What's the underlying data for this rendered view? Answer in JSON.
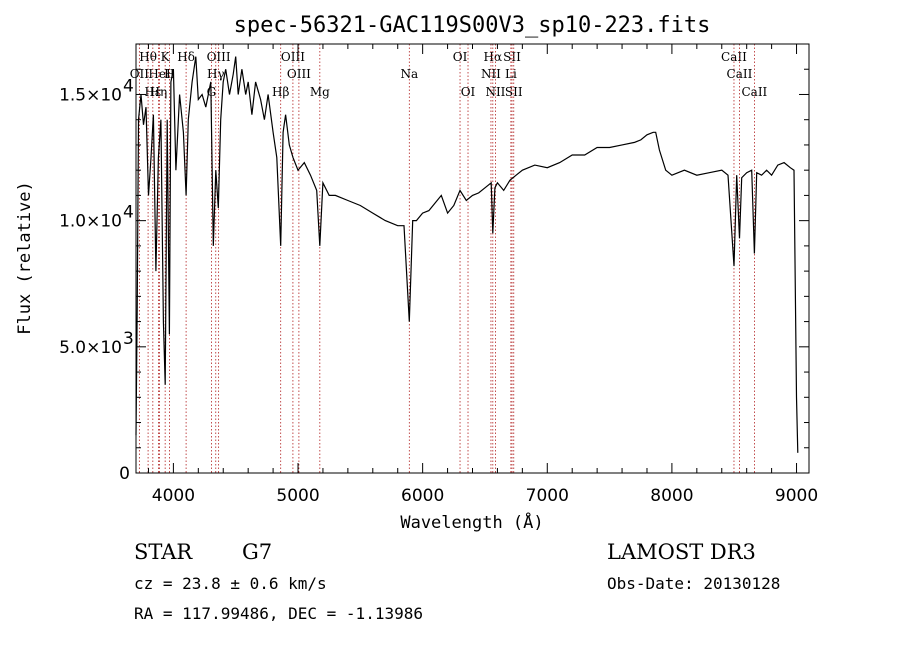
{
  "chart_data": {
    "type": "line",
    "title": "spec-56321-GAC119S00V3_sp10-223.fits",
    "xlabel": "Wavelength (Å)",
    "ylabel": "Flux (relative)",
    "xlim": [
      3700,
      9100
    ],
    "ylim": [
      0,
      17000
    ],
    "x_ticks": [
      {
        "value": 4000,
        "label": "4000"
      },
      {
        "value": 5000,
        "label": "5000"
      },
      {
        "value": 6000,
        "label": "6000"
      },
      {
        "value": 7000,
        "label": "7000"
      },
      {
        "value": 8000,
        "label": "8000"
      },
      {
        "value": 9000,
        "label": "9000"
      }
    ],
    "y_ticks": [
      {
        "value": 0,
        "mantissa": "0",
        "exp": ""
      },
      {
        "value": 5000,
        "mantissa": "5.0×10",
        "exp": "3"
      },
      {
        "value": 10000,
        "mantissa": "1.0×10",
        "exp": "4"
      },
      {
        "value": 15000,
        "mantissa": "1.5×10",
        "exp": "4"
      }
    ],
    "series": [
      {
        "name": "flux",
        "x": [
          3700,
          3710,
          3720,
          3740,
          3760,
          3780,
          3800,
          3820,
          3840,
          3860,
          3880,
          3900,
          3920,
          3934,
          3950,
          3968,
          3980,
          4000,
          4020,
          4050,
          4080,
          4102,
          4120,
          4150,
          4180,
          4200,
          4230,
          4260,
          4300,
          4320,
          4340,
          4360,
          4380,
          4400,
          4420,
          4450,
          4480,
          4500,
          4520,
          4550,
          4580,
          4600,
          4630,
          4660,
          4700,
          4730,
          4760,
          4800,
          4830,
          4861,
          4880,
          4900,
          4930,
          4960,
          5000,
          5050,
          5100,
          5150,
          5175,
          5200,
          5250,
          5300,
          5400,
          5500,
          5600,
          5700,
          5800,
          5850,
          5893,
          5920,
          5950,
          6000,
          6050,
          6100,
          6150,
          6200,
          6250,
          6300,
          6350,
          6400,
          6450,
          6500,
          6550,
          6563,
          6580,
          6600,
          6650,
          6700,
          6750,
          6800,
          6900,
          7000,
          7100,
          7200,
          7300,
          7400,
          7500,
          7600,
          7700,
          7750,
          7800,
          7850,
          7870,
          7900,
          7950,
          8000,
          8050,
          8100,
          8200,
          8300,
          8400,
          8450,
          8498,
          8520,
          8542,
          8560,
          8600,
          8640,
          8662,
          8680,
          8720,
          8760,
          8800,
          8850,
          8900,
          8950,
          8980,
          9000,
          9010
        ],
        "values": [
          1500,
          6500,
          14000,
          15000,
          13800,
          14500,
          11000,
          12500,
          14200,
          8000,
          12500,
          14000,
          6000,
          3500,
          14000,
          5500,
          15500,
          16000,
          12000,
          15000,
          13500,
          11000,
          14000,
          15500,
          16500,
          14800,
          15000,
          14500,
          15500,
          9000,
          12000,
          10500,
          14000,
          15500,
          16000,
          15000,
          15800,
          16500,
          15000,
          16000,
          15000,
          15500,
          14200,
          15500,
          14800,
          14000,
          15000,
          13500,
          12500,
          9000,
          13500,
          14200,
          13000,
          12500,
          12000,
          12300,
          11800,
          11200,
          9000,
          11500,
          11000,
          11000,
          10800,
          10600,
          10300,
          10000,
          9800,
          9800,
          6000,
          10000,
          10000,
          10300,
          10400,
          10700,
          11000,
          10300,
          10600,
          11200,
          10800,
          11000,
          11100,
          11300,
          11500,
          9500,
          11300,
          11500,
          11200,
          11600,
          11800,
          12000,
          12200,
          12100,
          12300,
          12600,
          12600,
          12900,
          12900,
          13000,
          13100,
          13200,
          13400,
          13500,
          13500,
          12800,
          12000,
          11800,
          11900,
          12000,
          11800,
          11900,
          12000,
          11800,
          8200,
          11800,
          9300,
          11700,
          11900,
          12000,
          8700,
          11900,
          11800,
          12000,
          11800,
          12200,
          12300,
          12100,
          12000,
          3000,
          800
        ]
      }
    ],
    "emission_lines": [
      {
        "label": "Hθ",
        "wavelength": 3797,
        "row": 0
      },
      {
        "label": "K",
        "wavelength": 3934,
        "row": 0
      },
      {
        "label": "Hδ",
        "wavelength": 4102,
        "row": 0
      },
      {
        "label": "OIII",
        "wavelength": 4363,
        "row": 0
      },
      {
        "label": "OIII",
        "wavelength": 4959,
        "row": 0
      },
      {
        "label": "OI",
        "wavelength": 6300,
        "row": 0
      },
      {
        "label": "Hα",
        "wavelength": 6563,
        "row": 0
      },
      {
        "label": "SII",
        "wavelength": 6717,
        "row": 0
      },
      {
        "label": "CaII",
        "wavelength": 8498,
        "row": 0
      },
      {
        "label": "OII",
        "wavelength": 3727,
        "row": 1
      },
      {
        "label": "HeI",
        "wavelength": 3889,
        "row": 1
      },
      {
        "label": "H",
        "wavelength": 3968,
        "row": 1
      },
      {
        "label": "Hγ",
        "wavelength": 4340,
        "row": 1
      },
      {
        "label": "OIII",
        "wavelength": 5007,
        "row": 1
      },
      {
        "label": "Na",
        "wavelength": 5893,
        "row": 1
      },
      {
        "label": "NII",
        "wavelength": 6548,
        "row": 1
      },
      {
        "label": "Li",
        "wavelength": 6708,
        "row": 1
      },
      {
        "label": "CaII",
        "wavelength": 8542,
        "row": 1
      },
      {
        "label": "Hε",
        "wavelength": 3835,
        "row": 2
      },
      {
        "label": "Hη",
        "wavelength": 3880,
        "row": 2
      },
      {
        "label": "G",
        "wavelength": 4305,
        "row": 2
      },
      {
        "label": "Hβ",
        "wavelength": 4861,
        "row": 2
      },
      {
        "label": "Mg",
        "wavelength": 5175,
        "row": 2
      },
      {
        "label": "OI",
        "wavelength": 6364,
        "row": 2
      },
      {
        "label": "NII",
        "wavelength": 6584,
        "row": 2
      },
      {
        "label": "SII",
        "wavelength": 6731,
        "row": 2
      },
      {
        "label": "CaII",
        "wavelength": 8662,
        "row": 2
      }
    ],
    "grid": false,
    "legend": "none"
  },
  "info": {
    "object_class": "STAR",
    "subclass": "G7",
    "survey": "LAMOST DR3",
    "redshift": "cz = 23.8 ± 0.6 km/s",
    "obs_date": "Obs-Date: 20130128",
    "coords": "RA = 117.99486, DEC =  -1.13986"
  }
}
